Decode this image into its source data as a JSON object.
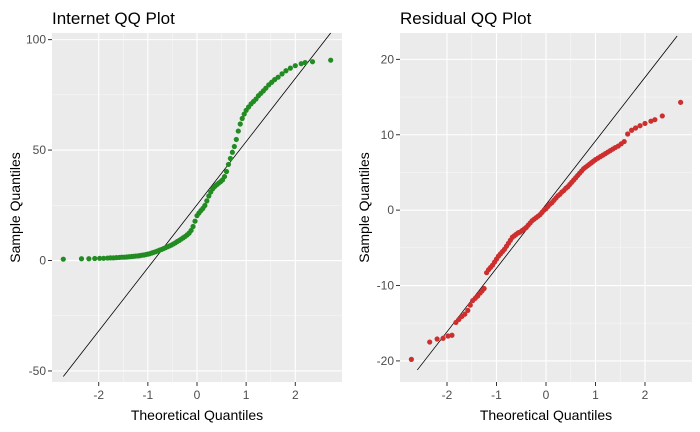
{
  "chart_data": [
    {
      "type": "scatter",
      "title": "Internet QQ Plot",
      "xlabel": "Theoretical Quantiles",
      "ylabel": "Sample Quantiles",
      "xlim": [
        -2.95,
        2.95
      ],
      "ylim": [
        -55,
        103
      ],
      "xticks": [
        -2,
        -1,
        0,
        1,
        2
      ],
      "yticks": [
        -50,
        0,
        50,
        100
      ],
      "grid": true,
      "point_color": "#228B22",
      "reference_line": {
        "x": [
          -2.72,
          2.72
        ],
        "y": [
          -52.5,
          103
        ]
      },
      "points": [
        [
          -2.72,
          0.6
        ],
        [
          -2.35,
          0.8
        ],
        [
          -2.2,
          0.8
        ],
        [
          -2.08,
          0.9
        ],
        [
          -1.98,
          1.0
        ],
        [
          -1.9,
          1.0
        ],
        [
          -1.82,
          1.1
        ],
        [
          -1.76,
          1.2
        ],
        [
          -1.7,
          1.2
        ],
        [
          -1.64,
          1.3
        ],
        [
          -1.58,
          1.4
        ],
        [
          -1.53,
          1.5
        ],
        [
          -1.48,
          1.5
        ],
        [
          -1.43,
          1.6
        ],
        [
          -1.38,
          1.7
        ],
        [
          -1.33,
          1.8
        ],
        [
          -1.29,
          1.9
        ],
        [
          -1.25,
          2.0
        ],
        [
          -1.2,
          2.1
        ],
        [
          -1.16,
          2.2
        ],
        [
          -1.12,
          2.4
        ],
        [
          -1.08,
          2.5
        ],
        [
          -1.04,
          2.7
        ],
        [
          -1.0,
          2.9
        ],
        [
          -0.96,
          3.1
        ],
        [
          -0.92,
          3.4
        ],
        [
          -0.88,
          3.7
        ],
        [
          -0.84,
          4.0
        ],
        [
          -0.8,
          4.3
        ],
        [
          -0.76,
          4.7
        ],
        [
          -0.72,
          5.0
        ],
        [
          -0.68,
          5.4
        ],
        [
          -0.64,
          5.8
        ],
        [
          -0.6,
          6.2
        ],
        [
          -0.56,
          6.6
        ],
        [
          -0.52,
          7.0
        ],
        [
          -0.48,
          7.5
        ],
        [
          -0.44,
          8.0
        ],
        [
          -0.4,
          8.6
        ],
        [
          -0.36,
          9.1
        ],
        [
          -0.32,
          9.7
        ],
        [
          -0.28,
          10.3
        ],
        [
          -0.24,
          10.9
        ],
        [
          -0.2,
          11.6
        ],
        [
          -0.16,
          12.4
        ],
        [
          -0.12,
          13.6
        ],
        [
          -0.08,
          15.4
        ],
        [
          -0.04,
          17.8
        ],
        [
          0.0,
          20.3
        ],
        [
          0.04,
          21.5
        ],
        [
          0.08,
          22.6
        ],
        [
          0.12,
          23.6
        ],
        [
          0.16,
          24.9
        ],
        [
          0.2,
          27.0
        ],
        [
          0.24,
          29.2
        ],
        [
          0.28,
          31.0
        ],
        [
          0.32,
          32.5
        ],
        [
          0.36,
          33.5
        ],
        [
          0.4,
          34.3
        ],
        [
          0.44,
          35.0
        ],
        [
          0.48,
          35.7
        ],
        [
          0.52,
          36.5
        ],
        [
          0.56,
          38.0
        ],
        [
          0.6,
          40.3
        ],
        [
          0.64,
          43.5
        ],
        [
          0.68,
          46.2
        ],
        [
          0.72,
          49.0
        ],
        [
          0.76,
          51.6
        ],
        [
          0.8,
          54.8
        ],
        [
          0.84,
          58.6
        ],
        [
          0.88,
          61.8
        ],
        [
          0.92,
          64.3
        ],
        [
          0.96,
          66.3
        ],
        [
          1.0,
          68.0
        ],
        [
          1.05,
          69.5
        ],
        [
          1.1,
          70.9
        ],
        [
          1.15,
          72.0
        ],
        [
          1.2,
          73.1
        ],
        [
          1.25,
          74.6
        ],
        [
          1.3,
          75.7
        ],
        [
          1.35,
          76.8
        ],
        [
          1.4,
          78.0
        ],
        [
          1.46,
          79.5
        ],
        [
          1.52,
          80.7
        ],
        [
          1.58,
          81.9
        ],
        [
          1.65,
          83.0
        ],
        [
          1.73,
          84.5
        ],
        [
          1.81,
          85.9
        ],
        [
          1.9,
          87.1
        ],
        [
          2.0,
          88.2
        ],
        [
          2.12,
          89.1
        ],
        [
          2.2,
          89.6
        ],
        [
          2.35,
          90.0
        ],
        [
          2.72,
          90.7
        ]
      ]
    },
    {
      "type": "scatter",
      "title": "Residual QQ Plot",
      "xlabel": "Theoretical Quantiles",
      "ylabel": "Sample Quantiles",
      "xlim": [
        -2.95,
        2.95
      ],
      "ylim": [
        -22.8,
        23.5
      ],
      "xticks": [
        -2,
        -1,
        0,
        1,
        2
      ],
      "yticks": [
        -20,
        -10,
        0,
        10,
        20
      ],
      "grid": true,
      "point_color": "#CD2E2E",
      "reference_line": {
        "x": [
          -2.6,
          2.65
        ],
        "y": [
          -21.2,
          23.1
        ]
      },
      "points": [
        [
          -2.72,
          -19.8
        ],
        [
          -2.35,
          -17.5
        ],
        [
          -2.2,
          -17.1
        ],
        [
          -2.08,
          -17.0
        ],
        [
          -1.98,
          -16.7
        ],
        [
          -1.9,
          -16.6
        ],
        [
          -1.82,
          -14.9
        ],
        [
          -1.76,
          -14.5
        ],
        [
          -1.7,
          -14.1
        ],
        [
          -1.64,
          -13.8
        ],
        [
          -1.58,
          -13.3
        ],
        [
          -1.53,
          -12.6
        ],
        [
          -1.48,
          -12.0
        ],
        [
          -1.43,
          -11.7
        ],
        [
          -1.38,
          -11.4
        ],
        [
          -1.33,
          -11.0
        ],
        [
          -1.29,
          -10.7
        ],
        [
          -1.25,
          -10.4
        ],
        [
          -1.2,
          -8.3
        ],
        [
          -1.16,
          -7.9
        ],
        [
          -1.12,
          -7.6
        ],
        [
          -1.08,
          -7.3
        ],
        [
          -1.04,
          -6.9
        ],
        [
          -1.0,
          -6.5
        ],
        [
          -0.96,
          -6.1
        ],
        [
          -0.92,
          -5.8
        ],
        [
          -0.88,
          -5.5
        ],
        [
          -0.84,
          -5.2
        ],
        [
          -0.8,
          -4.8
        ],
        [
          -0.76,
          -4.4
        ],
        [
          -0.72,
          -4.0
        ],
        [
          -0.68,
          -3.6
        ],
        [
          -0.64,
          -3.4
        ],
        [
          -0.6,
          -3.2
        ],
        [
          -0.56,
          -3.0
        ],
        [
          -0.52,
          -2.9
        ],
        [
          -0.48,
          -2.7
        ],
        [
          -0.44,
          -2.5
        ],
        [
          -0.4,
          -2.3
        ],
        [
          -0.36,
          -2.0
        ],
        [
          -0.32,
          -1.7
        ],
        [
          -0.28,
          -1.4
        ],
        [
          -0.24,
          -1.2
        ],
        [
          -0.2,
          -1.0
        ],
        [
          -0.16,
          -0.8
        ],
        [
          -0.12,
          -0.6
        ],
        [
          -0.08,
          -0.3
        ],
        [
          -0.04,
          0.0
        ],
        [
          0.0,
          0.2
        ],
        [
          0.04,
          0.5
        ],
        [
          0.08,
          0.8
        ],
        [
          0.12,
          1.0
        ],
        [
          0.16,
          1.3
        ],
        [
          0.2,
          1.6
        ],
        [
          0.24,
          1.9
        ],
        [
          0.28,
          2.1
        ],
        [
          0.32,
          2.4
        ],
        [
          0.36,
          2.6
        ],
        [
          0.4,
          2.9
        ],
        [
          0.44,
          3.1
        ],
        [
          0.48,
          3.4
        ],
        [
          0.52,
          3.7
        ],
        [
          0.56,
          4.0
        ],
        [
          0.6,
          4.3
        ],
        [
          0.64,
          4.6
        ],
        [
          0.68,
          4.9
        ],
        [
          0.72,
          5.2
        ],
        [
          0.76,
          5.5
        ],
        [
          0.8,
          5.7
        ],
        [
          0.84,
          5.9
        ],
        [
          0.88,
          6.1
        ],
        [
          0.92,
          6.3
        ],
        [
          0.96,
          6.5
        ],
        [
          1.0,
          6.7
        ],
        [
          1.05,
          6.9
        ],
        [
          1.1,
          7.1
        ],
        [
          1.15,
          7.3
        ],
        [
          1.2,
          7.5
        ],
        [
          1.25,
          7.7
        ],
        [
          1.3,
          7.9
        ],
        [
          1.35,
          8.1
        ],
        [
          1.4,
          8.3
        ],
        [
          1.46,
          8.5
        ],
        [
          1.52,
          8.8
        ],
        [
          1.58,
          9.1
        ],
        [
          1.65,
          10.1
        ],
        [
          1.73,
          10.6
        ],
        [
          1.81,
          10.9
        ],
        [
          1.9,
          11.2
        ],
        [
          2.0,
          11.5
        ],
        [
          2.12,
          11.8
        ],
        [
          2.2,
          12.0
        ],
        [
          2.35,
          12.5
        ],
        [
          2.72,
          14.3
        ]
      ]
    }
  ]
}
